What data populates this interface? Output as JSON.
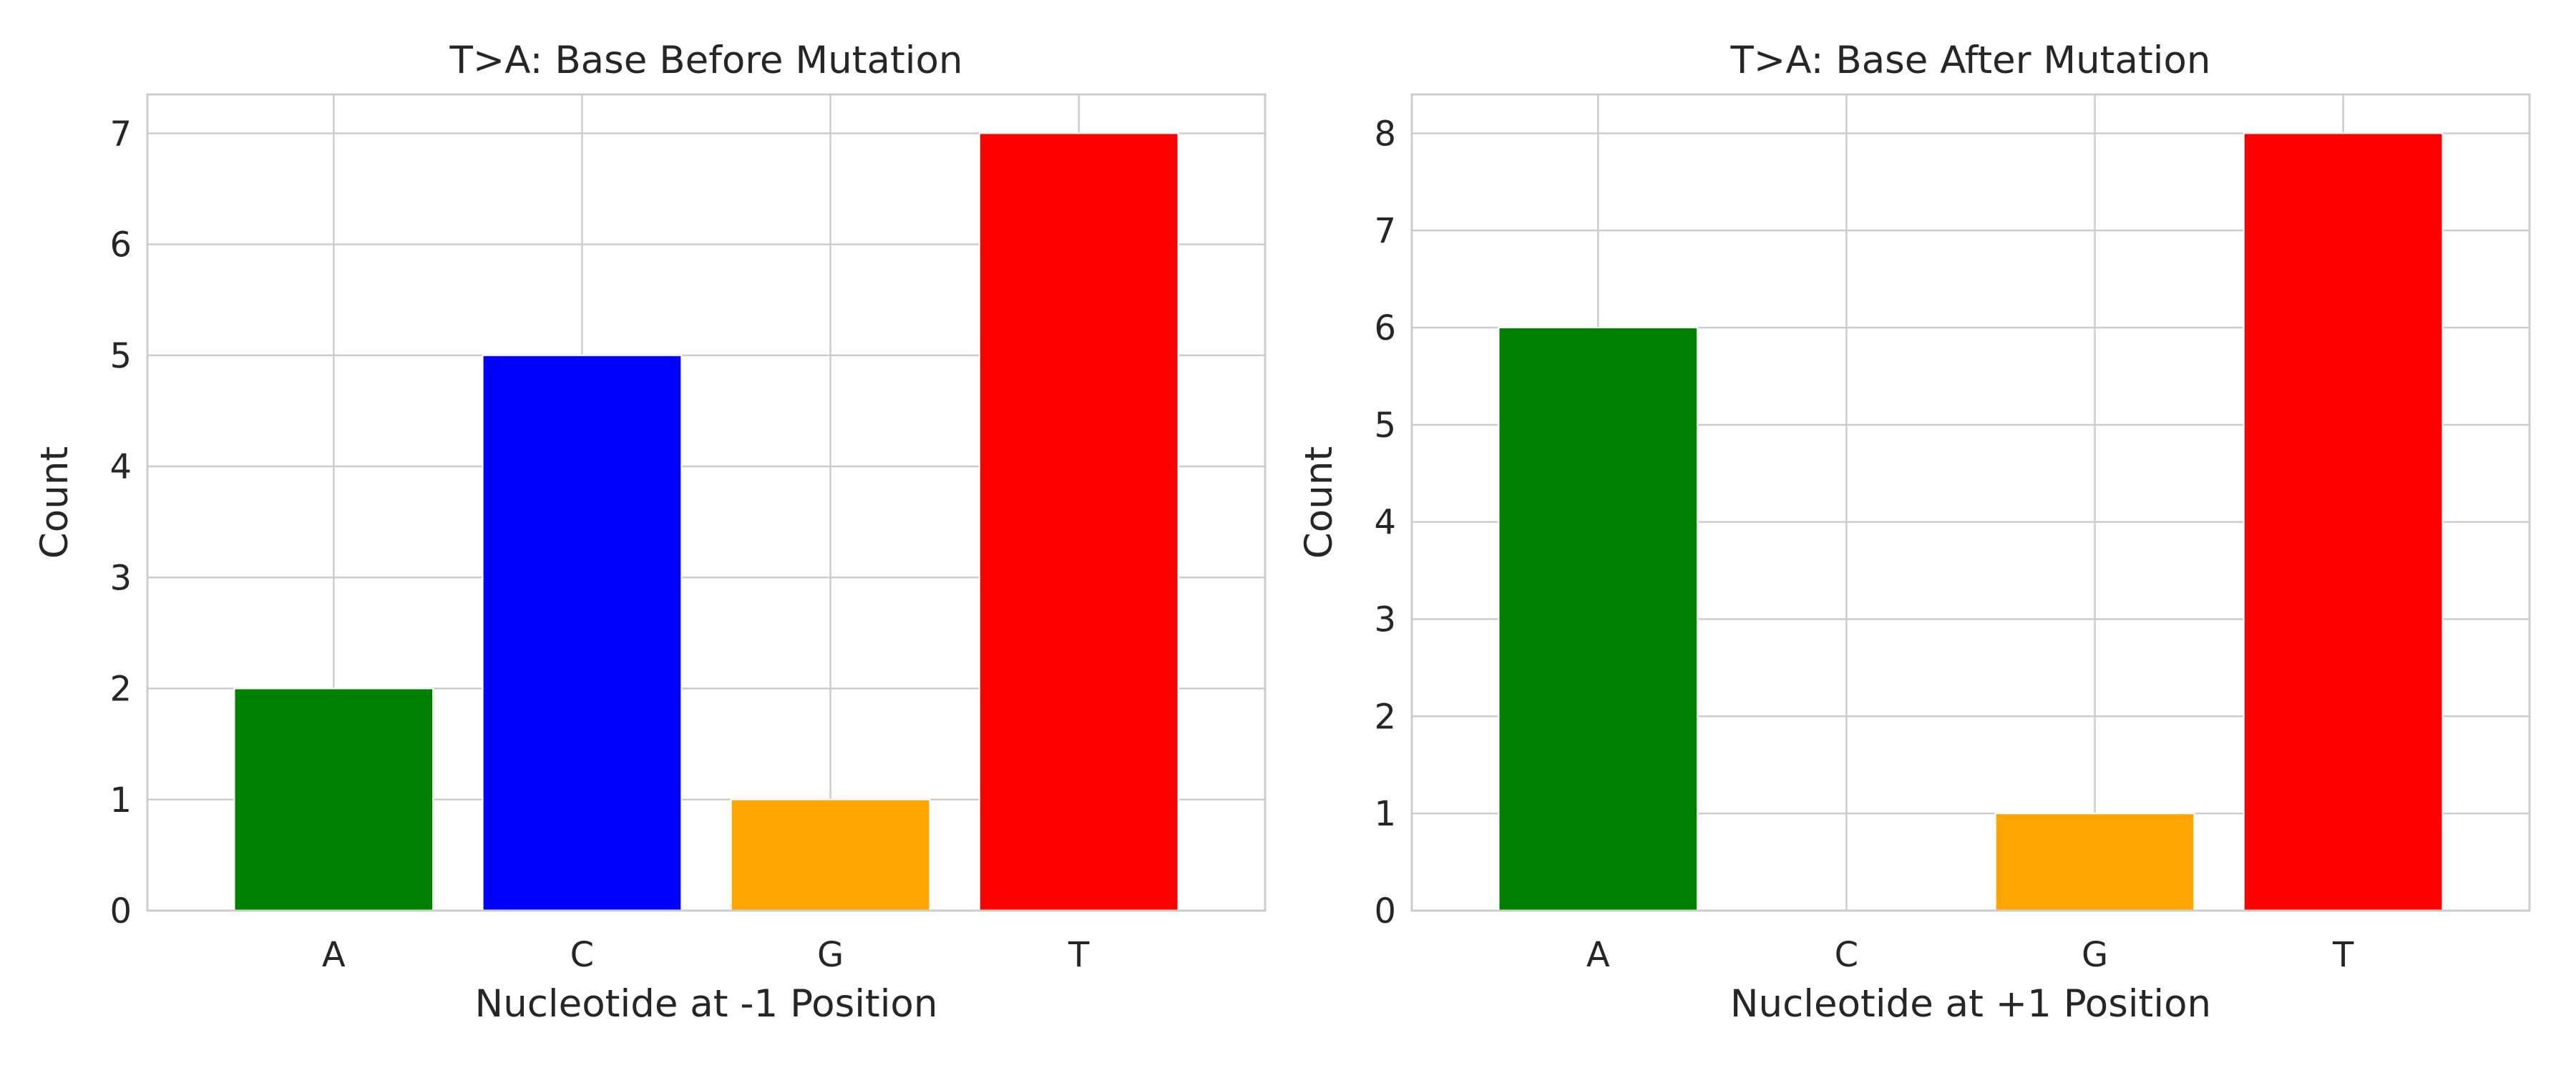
{
  "chart_data": [
    {
      "type": "bar",
      "title": "T>A: Base Before Mutation",
      "xlabel": "Nucleotide at -1 Position",
      "ylabel": "Count",
      "categories": [
        "A",
        "C",
        "G",
        "T"
      ],
      "values": [
        2,
        5,
        1,
        7
      ],
      "colors": [
        "#008000",
        "#0000ff",
        "#ffa500",
        "#ff0000"
      ],
      "ylim": [
        0,
        7.35
      ],
      "yticks": [
        "0",
        "1",
        "2",
        "3",
        "4",
        "5",
        "6",
        "7"
      ],
      "grid": true
    },
    {
      "type": "bar",
      "title": "T>A: Base After Mutation",
      "xlabel": "Nucleotide at +1 Position",
      "ylabel": "Count",
      "categories": [
        "A",
        "C",
        "G",
        "T"
      ],
      "values": [
        6,
        0,
        1,
        8
      ],
      "colors": [
        "#008000",
        "#0000ff",
        "#ffa500",
        "#ff0000"
      ],
      "ylim": [
        0,
        8.4
      ],
      "yticks": [
        "0",
        "1",
        "2",
        "3",
        "4",
        "5",
        "6",
        "7",
        "8"
      ],
      "grid": true
    }
  ]
}
